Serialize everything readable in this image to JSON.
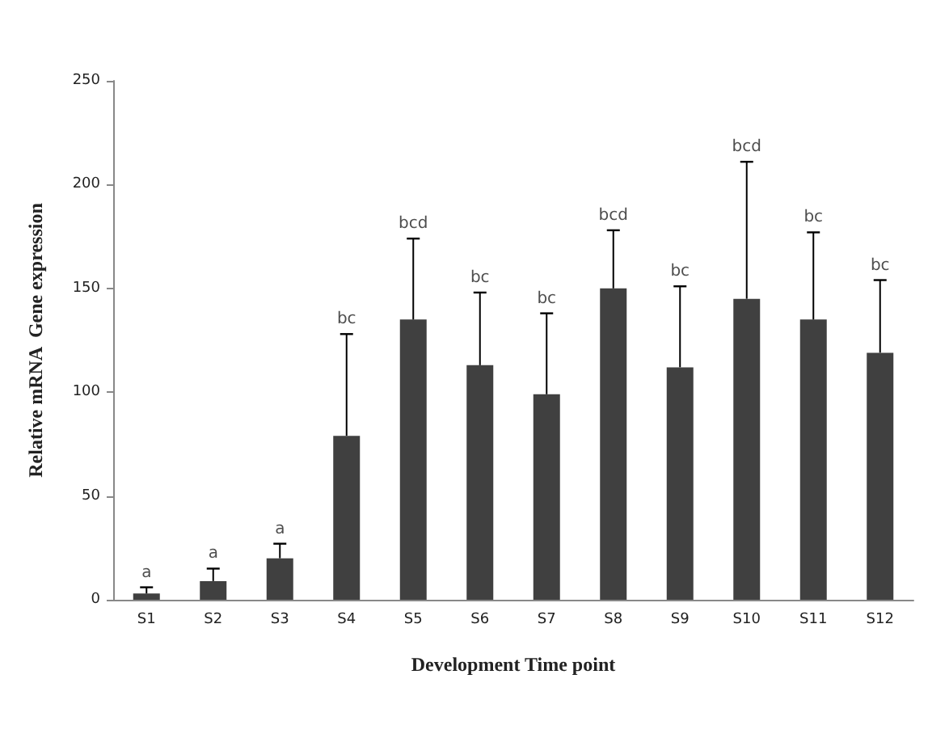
{
  "chart_data": {
    "type": "bar",
    "xlabel": "Development Time point",
    "ylabel": "Relative mRNA  Gene expression",
    "categories": [
      "S1",
      "S2",
      "S3",
      "S4",
      "S5",
      "S6",
      "S7",
      "S8",
      "S9",
      "S10",
      "S11",
      "S12"
    ],
    "values": [
      3,
      9,
      20,
      79,
      135,
      113,
      99,
      150,
      112,
      145,
      135,
      119
    ],
    "errors": [
      [
        3,
        6
      ],
      [
        9,
        15
      ],
      [
        20,
        27
      ],
      [
        79,
        128
      ],
      [
        135,
        174
      ],
      [
        113,
        148
      ],
      [
        99,
        138
      ],
      [
        150,
        178
      ],
      [
        112,
        151
      ],
      [
        145,
        211
      ],
      [
        135,
        177
      ],
      [
        119,
        154
      ]
    ],
    "color": "#404040",
    "ylim": [
      0,
      250
    ],
    "yticks": [
      0,
      50,
      100,
      150,
      200,
      250
    ],
    "grid": false,
    "annotations": [
      {
        "text": "a",
        "x": "S1",
        "y": 6
      },
      {
        "text": "a",
        "x": "S2",
        "y": 15
      },
      {
        "text": "a",
        "x": "S3",
        "y": 27
      },
      {
        "text": "bc",
        "x": "S4",
        "y": 128
      },
      {
        "text": "bcd",
        "x": "S5",
        "y": 174
      },
      {
        "text": "bc",
        "x": "S6",
        "y": 148
      },
      {
        "text": "bc",
        "x": "S7",
        "y": 138
      },
      {
        "text": "bcd",
        "x": "S8",
        "y": 178
      },
      {
        "text": "bc",
        "x": "S9",
        "y": 151
      },
      {
        "text": "bcd",
        "x": "S10",
        "y": 211
      },
      {
        "text": "bc",
        "x": "S11",
        "y": 177
      },
      {
        "text": "bc",
        "x": "S12",
        "y": 154
      }
    ]
  }
}
